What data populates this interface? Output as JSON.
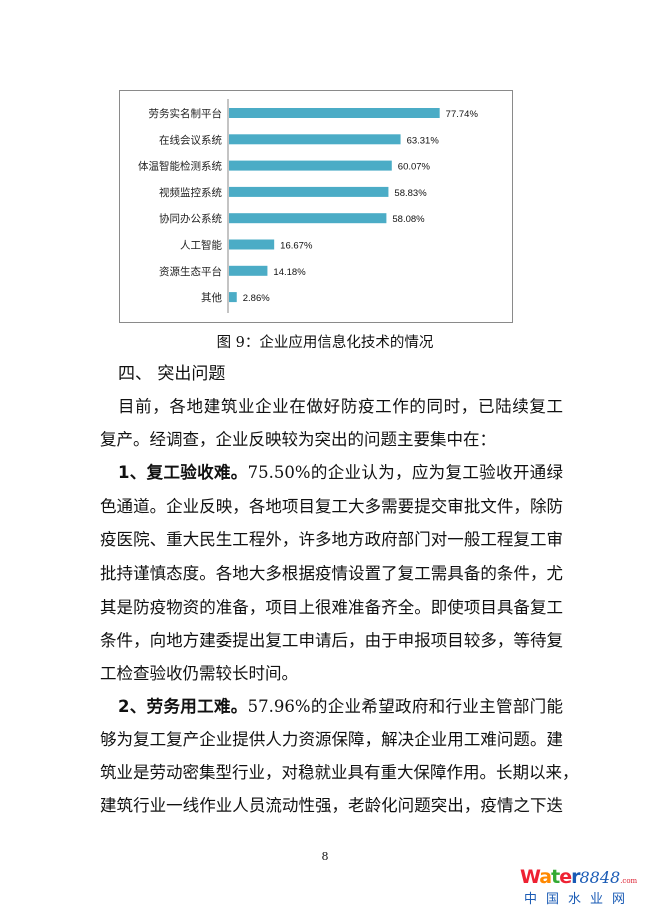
{
  "chart_data": {
    "type": "bar",
    "orientation": "horizontal",
    "categories": [
      "劳务实名制平台",
      "在线会议系统",
      "体温智能检测系统",
      "视频监控系统",
      "协同办公系统",
      "人工智能",
      "资源生态平台",
      "其他"
    ],
    "values": [
      77.74,
      63.31,
      60.07,
      58.83,
      58.08,
      16.67,
      14.18,
      2.86
    ],
    "data_labels": [
      "77.74%",
      "63.31%",
      "60.07%",
      "58.83%",
      "58.08%",
      "16.67%",
      "14.18%",
      "2.86%"
    ],
    "xlim": [
      0,
      100
    ],
    "grid": false,
    "bar_color": "#4bacc6",
    "title": ""
  },
  "caption": "图 9：企业应用信息化技术的情况",
  "heading": "四、 突出问题",
  "lines": [
    "目前，各地建筑业企业在做好防疫工作的同时，已陆续复工",
    "复产。经调查，企业反映较为突出的问题主要集中在：",
    "75.50%的企业认为，应为复工验收开通绿",
    "色通道。企业反映，各地项目复工大多需要提交审批文件，除防",
    "疫医院、重大民生工程外，许多地方政府部门对一般工程复工审",
    "批持谨慎态度。各地大多根据疫情设置了复工需具备的条件，尤",
    "其是防疫物资的准备，项目上很难准备齐全。即使项目具备复工",
    "条件，向地方建委提出复工申请后，由于申报项目较多，等待复",
    "工检查验收仍需较长时间。",
    "57.96%的企业希望政府和行业主管部门能",
    "够为复工复产企业提供人力资源保障，解决企业用工难问题。建",
    "筑业是劳动密集型行业，对稳就业具有重大保障作用。长期以来，",
    "建筑行业一线作业人员流动性强，老龄化问题突出，疫情之下迭"
  ],
  "bold1": "1、复工验收难。",
  "bold2": "2、劳务用工难。",
  "page_number": "8",
  "watermark": {
    "text": "Water8848.com",
    "cn": "中国水业网"
  }
}
